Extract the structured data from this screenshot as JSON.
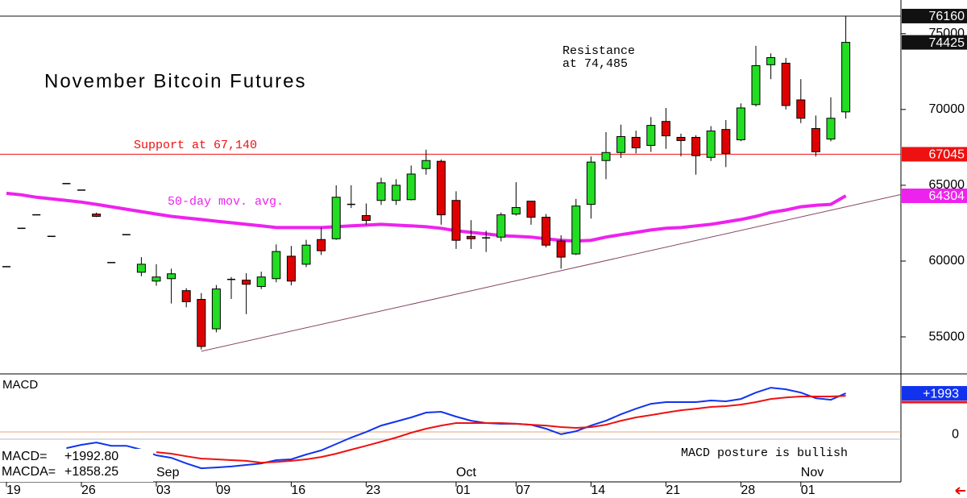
{
  "chart_data": [
    {
      "type": "candlestick",
      "title": "November Bitcoin Futures",
      "categories": [
        "19",
        null,
        null,
        null,
        null,
        "26",
        null,
        null,
        null,
        null,
        "03",
        null,
        null,
        null,
        "09",
        null,
        null,
        null,
        null,
        "16",
        null,
        null,
        null,
        null,
        "23",
        null,
        null,
        null,
        null,
        null,
        "01",
        null,
        null,
        null,
        "07",
        null,
        null,
        null,
        null,
        "14",
        null,
        null,
        null,
        null,
        "21",
        null,
        null,
        null,
        null,
        "28",
        null,
        null,
        null,
        "01",
        null,
        null,
        null
      ],
      "month_categories": [
        null,
        null,
        null,
        null,
        null,
        null,
        null,
        null,
        null,
        null,
        "Sep",
        null,
        null,
        null,
        null,
        null,
        null,
        null,
        null,
        null,
        null,
        null,
        null,
        null,
        null,
        null,
        null,
        null,
        null,
        null,
        "Oct",
        null,
        null,
        null,
        null,
        null,
        null,
        null,
        null,
        null,
        null,
        null,
        null,
        null,
        null,
        null,
        null,
        null,
        null,
        null,
        null,
        null,
        null,
        "Nov",
        null,
        null,
        null
      ],
      "open": [
        59630,
        62160,
        63050,
        61630,
        65110,
        64680,
        63100,
        59900,
        61740,
        59260,
        58680,
        58840,
        58050,
        57470,
        55530,
        58790,
        58740,
        58320,
        58840,
        60320,
        59790,
        61420,
        61470,
        63740,
        63000,
        64000,
        64000,
        64050,
        66100,
        66580,
        64000,
        61630,
        61530,
        61580,
        63100,
        63950,
        62890,
        61320,
        60470,
        63740,
        66630,
        67160,
        68160,
        67630,
        69210,
        68160,
        68160,
        66840,
        68680,
        68000,
        70320,
        72950,
        73050,
        70630,
        68740,
        68050,
        69840
      ],
      "high": [
        59630,
        62160,
        63050,
        61630,
        65110,
        64680,
        63200,
        59900,
        61740,
        60260,
        59790,
        59500,
        58210,
        57890,
        58420,
        58950,
        59200,
        59300,
        61100,
        61000,
        61400,
        62200,
        65000,
        65000,
        63800,
        65500,
        65400,
        66300,
        67350,
        66700,
        64600,
        62700,
        62000,
        63200,
        65200,
        63950,
        63100,
        61700,
        64100,
        66900,
        68500,
        69000,
        68600,
        69500,
        70100,
        68400,
        68300,
        68900,
        69300,
        70400,
        74200,
        73700,
        73400,
        72000,
        69600,
        70800,
        76160
      ],
      "low": [
        59630,
        62160,
        63050,
        61630,
        65110,
        64680,
        62900,
        59900,
        61740,
        59000,
        58370,
        57200,
        56950,
        54160,
        55300,
        57500,
        56500,
        58150,
        58600,
        58400,
        59600,
        60400,
        61400,
        63500,
        62400,
        63700,
        63700,
        64000,
        65700,
        62400,
        60800,
        60800,
        60600,
        61300,
        63000,
        62400,
        60900,
        59500,
        60400,
        62800,
        65400,
        66800,
        67100,
        67200,
        67400,
        66900,
        65700,
        66600,
        66200,
        67900,
        70200,
        72000,
        70000,
        69100,
        66900,
        67900,
        69400
      ],
      "close": [
        59630,
        62160,
        63050,
        61630,
        65110,
        64680,
        62950,
        59900,
        61740,
        59790,
        58950,
        59160,
        57320,
        54370,
        58160,
        58790,
        58470,
        58950,
        60630,
        58680,
        61050,
        60680,
        64210,
        63740,
        62680,
        65160,
        65000,
        65740,
        66630,
        63050,
        61370,
        61470,
        61530,
        63050,
        63530,
        62890,
        61050,
        60260,
        63630,
        66530,
        67160,
        68210,
        67470,
        68950,
        68260,
        67950,
        66950,
        68580,
        67100,
        70100,
        72890,
        73420,
        70260,
        69420,
        67210,
        69420,
        74425
      ],
      "up_color": "#22dd22",
      "down_color": "#e00000",
      "moving_average": {
        "name": "50-day mov. avg.",
        "color": "#ee22ee",
        "values": [
          64470,
          64370,
          64210,
          64100,
          64000,
          63890,
          63740,
          63580,
          63420,
          63260,
          63100,
          62950,
          62840,
          62740,
          62630,
          62530,
          62420,
          62320,
          62210,
          62210,
          62210,
          62210,
          62260,
          62320,
          62370,
          62420,
          62370,
          62320,
          62260,
          62160,
          62000,
          61890,
          61790,
          61680,
          61630,
          61580,
          61470,
          61370,
          61320,
          61370,
          61580,
          61740,
          61890,
          62050,
          62160,
          62210,
          62320,
          62420,
          62580,
          62740,
          62950,
          63210,
          63370,
          63580,
          63680,
          63740,
          64304
        ]
      },
      "trendline": {
        "x": [
          13,
          60
        ],
        "values": [
          54050,
          64460
        ],
        "color": "#884466"
      },
      "price_boxes": [
        {
          "value": 76160,
          "color": "#111111",
          "line": true
        },
        {
          "value": 74425,
          "color": "#111111",
          "line": false
        },
        {
          "value": 67045,
          "color": "#ee1111",
          "line": true
        },
        {
          "value": 64304,
          "color": "#ee22ee",
          "line": false
        }
      ],
      "annotations": {
        "resistance": [
          "Resistance",
          "at 74,485"
        ],
        "support": "Support at 67,140"
      },
      "ylim": [
        52610,
        77220
      ],
      "yticks": [
        55000,
        60000,
        65000,
        70000,
        75000
      ]
    },
    {
      "type": "line",
      "title": "MACD",
      "note": "MACD posture is bullish",
      "series": [
        {
          "name": "MACD=",
          "color": "#1133ee",
          "readout": "+1992.80",
          "values": [
            null,
            null,
            null,
            null,
            -830,
            -660,
            -540,
            -710,
            -710,
            -910,
            -1200,
            -1330,
            -1620,
            -1870,
            -1830,
            -1780,
            -1700,
            -1620,
            -1450,
            -1410,
            -1160,
            -950,
            -620,
            -290,
            0,
            330,
            540,
            750,
            1000,
            1040,
            790,
            580,
            460,
            420,
            420,
            370,
            170,
            -120,
            40,
            330,
            580,
            910,
            1200,
            1450,
            1540,
            1540,
            1540,
            1620,
            1580,
            1700,
            2030,
            2280,
            2200,
            2030,
            1740,
            1660,
            1992.8
          ]
        },
        {
          "name": "MACDA=",
          "color": "#ee1111",
          "readout": "+1858.25",
          "values": [
            null,
            null,
            null,
            null,
            null,
            null,
            null,
            null,
            null,
            null,
            -1040,
            -1120,
            -1250,
            -1370,
            -1410,
            -1450,
            -1490,
            -1580,
            -1540,
            -1490,
            -1410,
            -1290,
            -1120,
            -910,
            -710,
            -500,
            -290,
            -40,
            170,
            330,
            460,
            460,
            460,
            460,
            420,
            370,
            330,
            250,
            210,
            250,
            370,
            580,
            750,
            870,
            1000,
            1120,
            1200,
            1290,
            1330,
            1410,
            1540,
            1700,
            1780,
            1830,
            1830,
            1830,
            1858.25
          ]
        }
      ],
      "last_box": {
        "value": 1993,
        "label": "+1993",
        "color": "#1133ee"
      },
      "ylim": [
        -2530,
        2950
      ],
      "yticks": [
        0
      ]
    }
  ]
}
